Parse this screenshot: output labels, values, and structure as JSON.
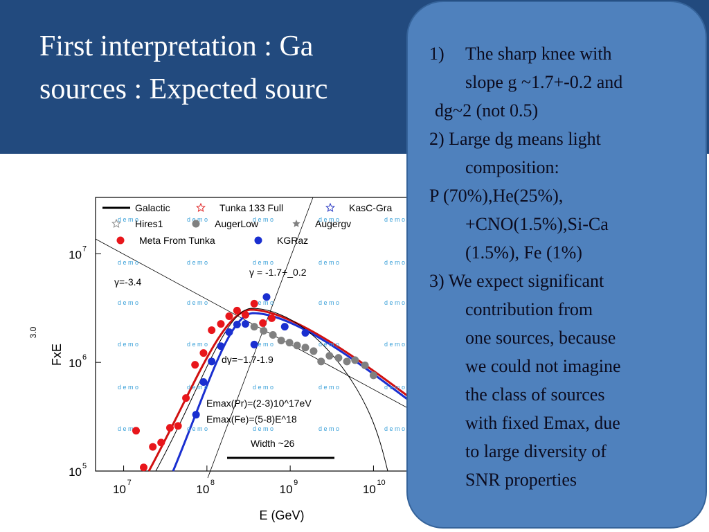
{
  "slide": {
    "title_lines": [
      "First interpretation :  Ga",
      "sources : Expected sourc"
    ]
  },
  "callout": {
    "lines": [
      "1)",
      "The  sharp knee with",
      "slope  g ~1.7+-0.2 and",
      "dg~2 (not 0.5)",
      "2) Large dg means  light",
      "composition:",
      "P (70%),He(25%),",
      "+CNO(1.5%),Si-Ca",
      "(1.5%), Fe (1%)",
      "3)  We expect significant",
      "contribution from",
      "one sources, because",
      "we could not imagine",
      "the class of sources",
      "with fixed Emax, due",
      "to large diversity of",
      "SNR properties"
    ]
  },
  "chart_data": {
    "type": "scatter",
    "x_label": "E (GeV)",
    "y_label": "FxE",
    "y_label_power": "3.0",
    "log_x": true,
    "log_y": true,
    "xlim": [
      4600000,
      1000000000000
    ],
    "ylim": [
      100000,
      33000000
    ],
    "xticks": [
      {
        "value": 10000000,
        "label": "10",
        "exponent": "7"
      },
      {
        "value": 100000000,
        "label": "10",
        "exponent": "8"
      },
      {
        "value": 1000000000,
        "label": "10",
        "exponent": "9"
      },
      {
        "value": 10000000000,
        "label": "10",
        "exponent": "10"
      }
    ],
    "yticks": [
      {
        "value": 100000,
        "label": "10",
        "exponent": "5"
      },
      {
        "value": 1000000,
        "label": "10",
        "exponent": "6"
      },
      {
        "value": 10000000,
        "label": "10",
        "exponent": "7"
      }
    ],
    "annotations": [
      "γ=-3.4",
      "γ =  -1.7+_0.2",
      "dγ=~1.7-1.9",
      "Emax(Pr)=(2-3)10^17eV",
      "Emax(Fe)=(5-8)E^18",
      "Width ~26"
    ],
    "watermark": "d e m o",
    "series": [
      {
        "name": "Galactic",
        "color": "#000000",
        "marker": "line",
        "x": [],
        "values": []
      },
      {
        "name": "Tunka 133 Full",
        "color": "#e02020",
        "marker": "open-star",
        "x": [],
        "values": []
      },
      {
        "name": "KasC-Gra",
        "color": "#2030c0",
        "marker": "open-star",
        "x": [],
        "values": []
      },
      {
        "name": "Hires1",
        "color": "#888888",
        "marker": "open-star",
        "x": [],
        "values": []
      },
      {
        "name": "AugerLow",
        "color": "#808080",
        "marker": "circle",
        "x": [
          370000000,
          480000000,
          620000000,
          780000000,
          980000000,
          1210000000,
          1520000000,
          1910000000,
          2350000000,
          2960000000,
          3800000000,
          4800000000,
          6000000000,
          7900000000,
          10000000000
        ],
        "values": [
          2130000,
          1950000,
          1790000,
          1590000,
          1520000,
          1430000,
          1370000,
          1270000,
          1020000,
          1150000,
          1100000,
          1020000,
          1050000,
          940000,
          760000
        ]
      },
      {
        "name": "Augergv",
        "color": "#808080",
        "marker": "star",
        "x": [],
        "values": []
      },
      {
        "name": "Meta From Tunka",
        "color": "#e8161b",
        "marker": "circle",
        "x": [
          14100000,
          17400000,
          22400000,
          28200000,
          36000000,
          45000000,
          56000000,
          72000000,
          91000000,
          114000000,
          147000000,
          185000000,
          230000000,
          290000000,
          370000000,
          470000000,
          600000000
        ],
        "values": [
          235000,
          108000,
          167000,
          183000,
          250000,
          260000,
          470000,
          950000,
          1220000,
          1980000,
          2260000,
          2660000,
          3000000,
          2740000,
          3470000,
          2300000,
          2550000
        ]
      },
      {
        "name": "KGRaz",
        "color": "#1a2fd0",
        "marker": "circle",
        "x": [
          74000000,
          91000000,
          114000000,
          147000000,
          185000000,
          230000000,
          290000000,
          370000000,
          520000000,
          860000000,
          1520000000
        ],
        "values": [
          330000,
          660000,
          1020000,
          1410000,
          1900000,
          2230000,
          2260000,
          1460000,
          4000000,
          2130000,
          1870000
        ]
      }
    ]
  }
}
